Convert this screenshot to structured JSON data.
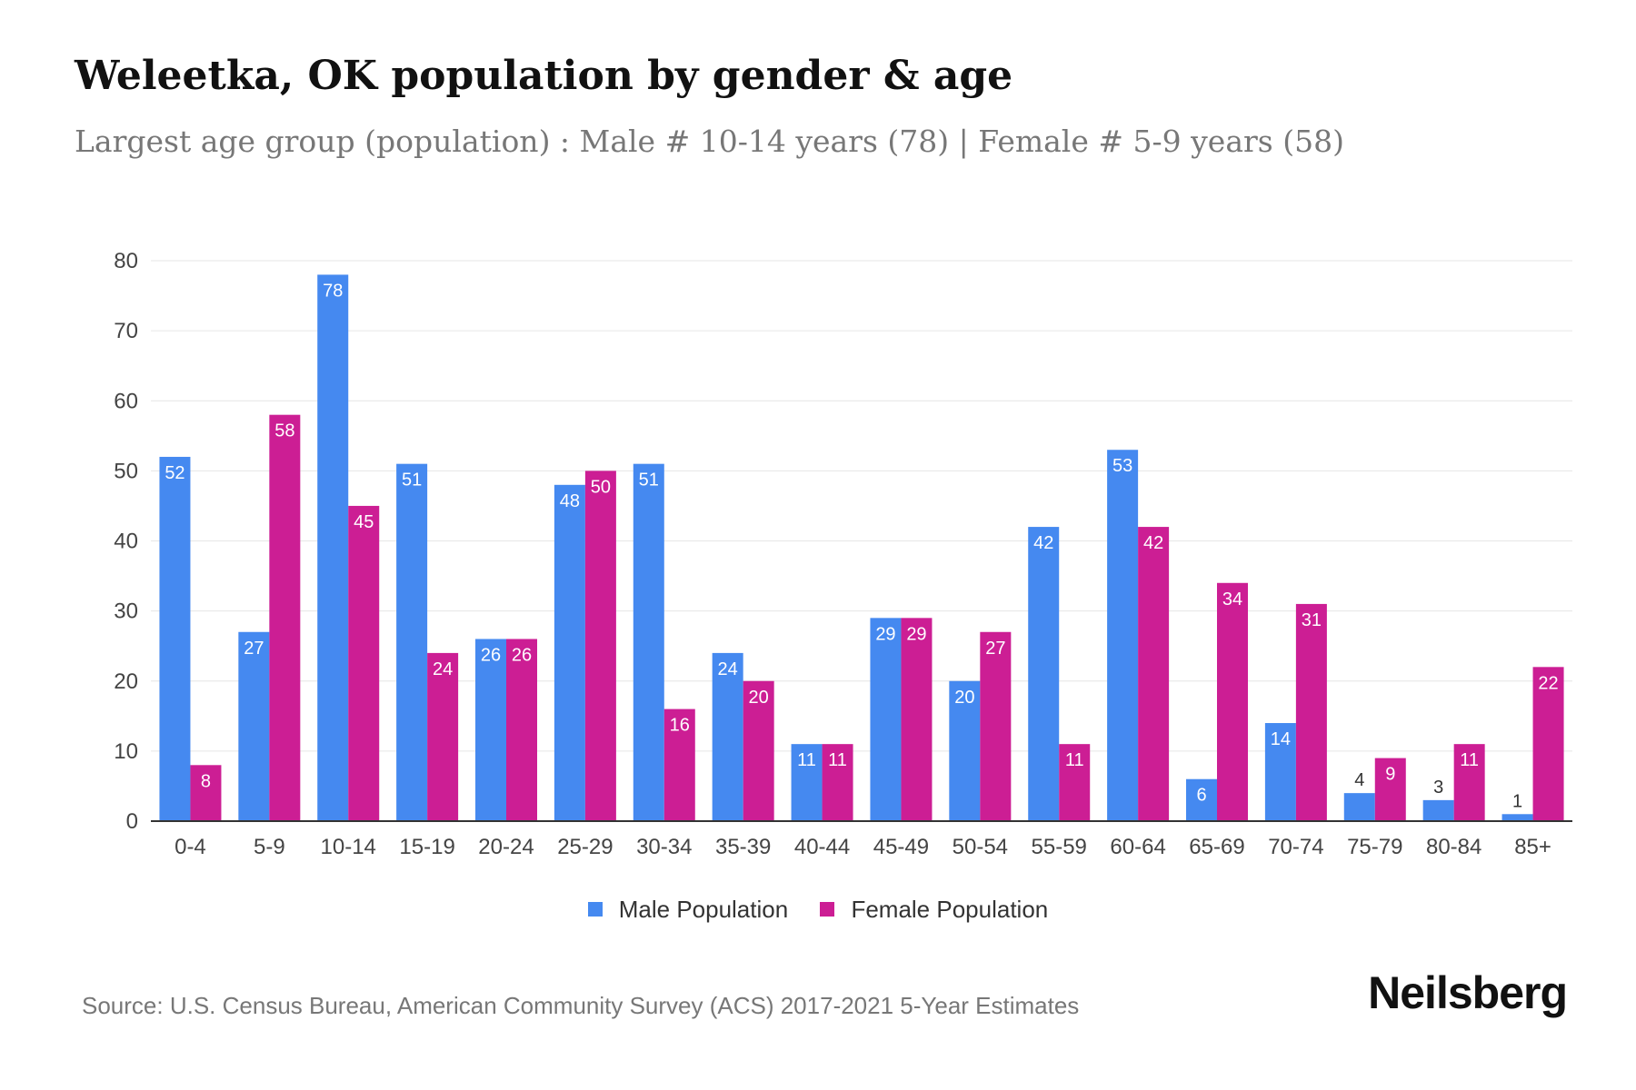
{
  "title": "Weleetka, OK population by gender & age",
  "subtitle": "Largest age group (population) : Male # 10-14 years (78) | Female # 5-9 years (58)",
  "source": "Source: U.S. Census Bureau, American Community Survey (ACS) 2017-2021 5-Year Estimates",
  "brand": "Neilsberg",
  "chart_data": {
    "type": "bar",
    "categories": [
      "0-4",
      "5-9",
      "10-14",
      "15-19",
      "20-24",
      "25-29",
      "30-34",
      "35-39",
      "40-44",
      "45-49",
      "50-54",
      "55-59",
      "60-64",
      "65-69",
      "70-74",
      "75-79",
      "80-84",
      "85+"
    ],
    "series": [
      {
        "name": "Male Population",
        "color": "#4589F0",
        "values": [
          52,
          27,
          78,
          51,
          26,
          48,
          51,
          24,
          11,
          29,
          20,
          42,
          53,
          6,
          14,
          4,
          3,
          1
        ]
      },
      {
        "name": "Female Population",
        "color": "#CC1E94",
        "values": [
          8,
          58,
          45,
          24,
          26,
          50,
          16,
          20,
          11,
          29,
          27,
          11,
          42,
          34,
          31,
          9,
          11,
          22
        ]
      }
    ],
    "ylim": [
      0,
      80
    ],
    "yticks": [
      0,
      10,
      20,
      30,
      40,
      50,
      60,
      70,
      80
    ],
    "grid": true,
    "legend_position": "bottom"
  }
}
